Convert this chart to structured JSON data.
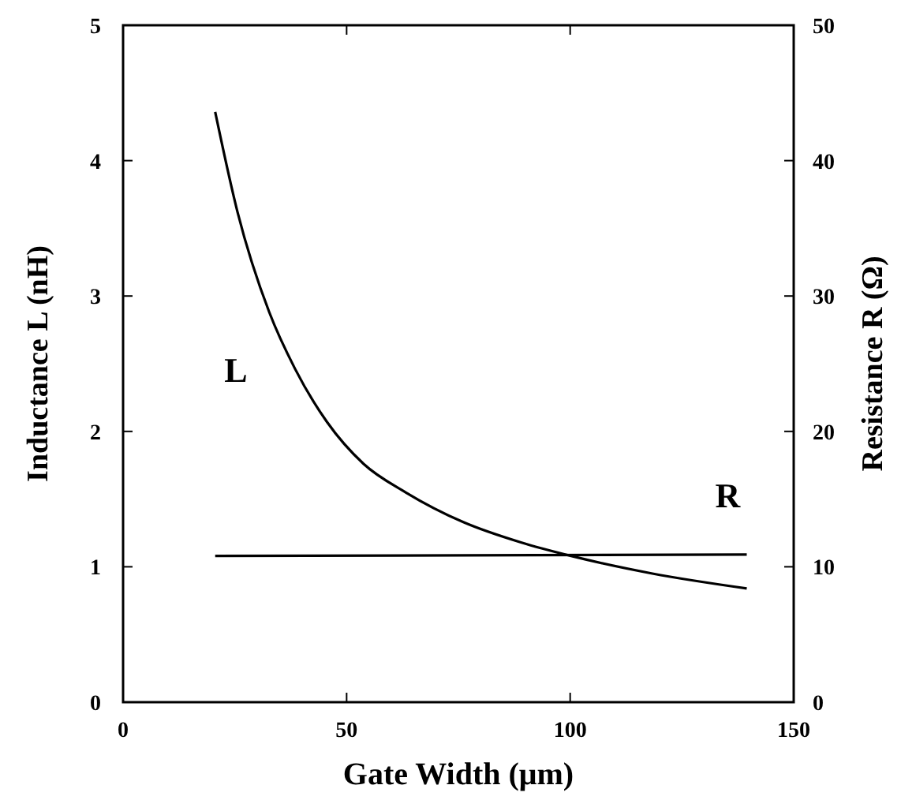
{
  "chart_data": {
    "type": "line",
    "xlabel": "Gate Width (μm)",
    "ylabel": "Inductance  L (nH)",
    "y2label": "Resistance  R (Ω)",
    "xlim": [
      0,
      150
    ],
    "xticks": [
      0,
      50,
      100,
      150
    ],
    "ylim": [
      0,
      5
    ],
    "yticks": [
      0,
      1,
      2,
      3,
      4,
      5
    ],
    "y2lim": [
      0,
      50
    ],
    "y2ticks": [
      0,
      10,
      20,
      30,
      40,
      50
    ],
    "grid": false,
    "marker": "none",
    "line_style": "solid",
    "series": [
      {
        "name": "L",
        "color": "#000000",
        "x": [
          20.6,
          25.6,
          32.7,
          38.5,
          45.6,
          53.8,
          63.2,
          76.1,
          89.0,
          100.2,
          118.4,
          139.5
        ],
        "values": [
          4.36,
          3.62,
          2.88,
          2.46,
          2.07,
          1.76,
          1.55,
          1.33,
          1.18,
          1.08,
          0.95,
          0.84
        ]
      },
      {
        "name": "R",
        "color": "#000000",
        "axis": "y2",
        "x": [
          20.6,
          139.5
        ],
        "values": [
          10.8,
          10.9
        ]
      }
    ]
  }
}
